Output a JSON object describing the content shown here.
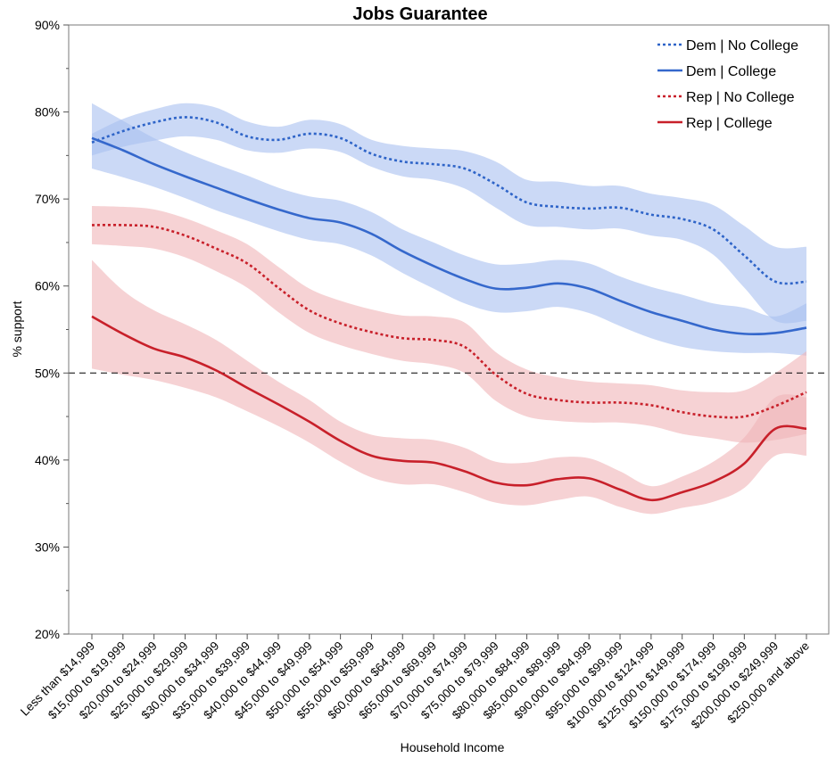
{
  "chart_data": {
    "type": "line",
    "title": "Jobs Guarantee",
    "xlabel": "Household Income",
    "ylabel": "% support",
    "ylim": [
      20,
      90
    ],
    "yticks": [
      20,
      30,
      40,
      50,
      60,
      70,
      80,
      90
    ],
    "ytick_labels": [
      "20%",
      "30%",
      "40%",
      "50%",
      "60%",
      "70%",
      "80%",
      "90%"
    ],
    "reference_line": 50,
    "legend_position": "top-right",
    "categories": [
      "Less than $14,999",
      "$15,000 to $19,999",
      "$20,000 to $24,999",
      "$25,000 to $29,999",
      "$30,000 to $34,999",
      "$35,000 to $39,999",
      "$40,000 to $44,999",
      "$45,000 to $49,999",
      "$50,000 to $54,999",
      "$55,000 to $59,999",
      "$60,000 to $64,999",
      "$65,000 to $69,999",
      "$70,000 to $74,999",
      "$75,000 to $79,999",
      "$80,000 to $84,999",
      "$85,000 to $89,999",
      "$90,000 to $94,999",
      "$95,000 to $99,999",
      "$100,000 to $124,999",
      "$125,000 to $149,999",
      "$150,000 to $174,999",
      "$175,000 to $199,999",
      "$200,000 to $249,999",
      "$250,000 and above"
    ],
    "series": [
      {
        "name": "Dem | No College",
        "color": "#2e64c8",
        "band_color": "#a9bff0",
        "style": "dotted",
        "values": [
          76.5,
          77.8,
          78.8,
          79.4,
          78.8,
          77.2,
          76.8,
          77.5,
          77.0,
          75.2,
          74.3,
          74.0,
          73.5,
          71.7,
          69.6,
          69.1,
          68.9,
          69.0,
          68.2,
          67.7,
          66.5,
          63.5,
          60.5,
          60.5
        ],
        "lower": [
          75.0,
          76.0,
          76.7,
          77.2,
          76.8,
          75.6,
          75.3,
          75.8,
          75.4,
          73.7,
          72.6,
          72.2,
          71.2,
          69.0,
          67.0,
          66.8,
          66.5,
          66.6,
          65.8,
          65.3,
          63.6,
          59.8,
          56.0,
          56.0
        ],
        "upper": [
          77.5,
          79.2,
          80.3,
          81.0,
          80.5,
          78.9,
          78.3,
          79.1,
          78.6,
          76.8,
          76.1,
          75.8,
          75.5,
          74.3,
          72.2,
          72.0,
          71.5,
          71.5,
          70.6,
          70.1,
          69.3,
          66.9,
          64.5,
          64.5
        ]
      },
      {
        "name": "Dem | College",
        "color": "#3568cc",
        "band_color": "#a9bff0",
        "style": "solid",
        "values": [
          77.0,
          75.6,
          74.0,
          72.6,
          71.3,
          70.0,
          68.8,
          67.8,
          67.3,
          66.0,
          64.0,
          62.3,
          60.8,
          59.7,
          59.8,
          60.3,
          59.7,
          58.3,
          57.0,
          56.0,
          55.0,
          54.5,
          54.6,
          55.2
        ],
        "lower": [
          73.5,
          72.5,
          71.4,
          70.1,
          68.7,
          67.5,
          66.3,
          65.3,
          64.8,
          63.5,
          61.5,
          59.7,
          58.0,
          57.0,
          57.1,
          57.6,
          56.9,
          55.4,
          54.0,
          53.0,
          52.5,
          52.3,
          52.3,
          52.0
        ],
        "upper": [
          81.0,
          79.0,
          77.0,
          75.4,
          74.0,
          72.7,
          71.3,
          70.3,
          69.8,
          68.5,
          66.5,
          65.0,
          63.5,
          62.5,
          62.6,
          63.0,
          62.6,
          61.1,
          59.9,
          59.0,
          58.0,
          57.5,
          56.5,
          58.0
        ]
      },
      {
        "name": "Rep | No College",
        "color": "#c8202a",
        "band_color": "#f0b4b8",
        "style": "dotted",
        "values": [
          67.0,
          67.0,
          66.8,
          65.8,
          64.3,
          62.6,
          59.8,
          57.2,
          55.7,
          54.7,
          54.0,
          53.8,
          53.0,
          49.8,
          47.6,
          46.9,
          46.6,
          46.6,
          46.3,
          45.5,
          45.0,
          45.0,
          46.2,
          47.8
        ],
        "lower": [
          64.8,
          64.6,
          64.3,
          63.3,
          61.7,
          59.8,
          57.0,
          54.6,
          53.2,
          52.2,
          51.4,
          51.0,
          50.0,
          46.8,
          45.0,
          44.5,
          44.3,
          44.3,
          43.9,
          43.0,
          42.5,
          42.0,
          42.3,
          43.0
        ],
        "upper": [
          69.2,
          69.1,
          68.8,
          67.8,
          66.4,
          64.8,
          62.2,
          59.7,
          58.3,
          57.3,
          56.6,
          56.5,
          55.8,
          52.4,
          50.4,
          49.5,
          49.0,
          48.8,
          48.6,
          48.0,
          47.8,
          48.0,
          50.0,
          52.5
        ]
      },
      {
        "name": "Rep | College",
        "color": "#c8202a",
        "band_color": "#f0b4b8",
        "style": "solid",
        "values": [
          56.5,
          54.5,
          52.8,
          51.8,
          50.3,
          48.3,
          46.4,
          44.4,
          42.2,
          40.5,
          39.9,
          39.7,
          38.7,
          37.4,
          37.1,
          37.8,
          37.9,
          36.6,
          35.4,
          36.3,
          37.5,
          39.6,
          43.6,
          43.6
        ],
        "lower": [
          50.5,
          49.8,
          49.2,
          48.3,
          47.2,
          45.6,
          43.9,
          42.0,
          39.8,
          38.0,
          37.2,
          37.2,
          36.3,
          35.1,
          34.8,
          35.4,
          35.8,
          34.6,
          33.8,
          34.5,
          35.2,
          36.8,
          40.5,
          40.5
        ],
        "upper": [
          63.0,
          59.5,
          57.2,
          55.6,
          53.8,
          51.4,
          49.0,
          46.9,
          44.4,
          42.9,
          42.5,
          42.3,
          41.4,
          39.8,
          39.7,
          40.3,
          40.2,
          38.7,
          37.0,
          38.1,
          39.8,
          42.6,
          47.2,
          47.2
        ]
      }
    ]
  }
}
